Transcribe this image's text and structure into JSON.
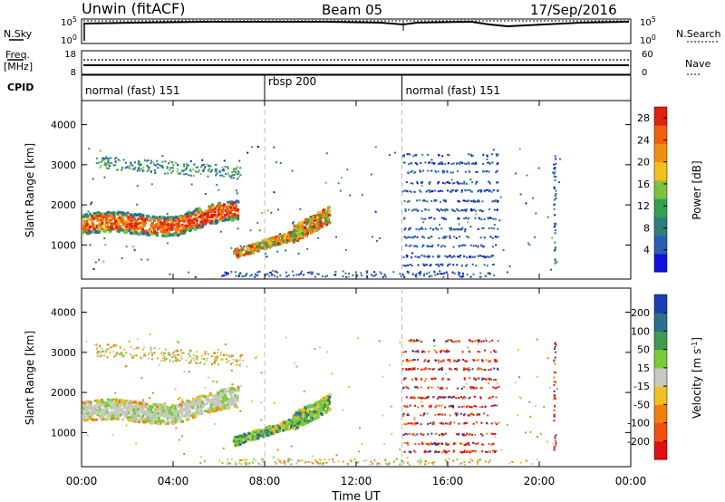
{
  "header": {
    "station": "Unwin (fitACF)",
    "beam": "Beam 05",
    "date": "17/Sep/2016"
  },
  "colors": {
    "background": "#ffffff",
    "axis": "#000000",
    "mode_divider": "#bbbbbb",
    "ground_scatter": "#c8c8c0"
  },
  "noise_panel": {
    "left_label": "N.Sky",
    "left_ticks": [
      "10^5",
      "10^0"
    ],
    "right_label": "N.Search",
    "right_ticks": [
      "10^5",
      "10^0"
    ]
  },
  "freq_panel": {
    "left_label_1": "Freq.",
    "left_label_2": "[MHz]",
    "left_ticks": [
      "18",
      "8"
    ],
    "right_label": "Nave",
    "right_ticks": [
      "60",
      "0"
    ]
  },
  "cpid_panel": {
    "label": "CPID",
    "segments": [
      {
        "label": "normal (fast) 151",
        "start_hour": 0,
        "end_hour": 8
      },
      {
        "label": "rbsp 200",
        "start_hour": 8,
        "end_hour": 14
      },
      {
        "label": "normal (fast) 151",
        "start_hour": 14,
        "end_hour": 24
      }
    ]
  },
  "x_axis": {
    "label": "Time UT",
    "ticks": [
      "00:00",
      "04:00",
      "08:00",
      "12:00",
      "16:00",
      "20:00",
      "00:00"
    ]
  },
  "chart_data": [
    {
      "type": "heatmap",
      "title": "",
      "xlabel": "Time UT",
      "ylabel": "Slant Range [km]",
      "xlim_hours": [
        0,
        24
      ],
      "ylim_km": [
        150,
        4600
      ],
      "y_ticks": [
        "1000",
        "2000",
        "3000",
        "4000"
      ],
      "colorbar": {
        "label": "Power [dB]",
        "ticks": [
          "4",
          "8",
          "12",
          "16",
          "20",
          "24",
          "28"
        ],
        "range": [
          0,
          30
        ],
        "colors": [
          "#1010e0",
          "#2a5fb0",
          "#2f7f7a",
          "#33a050",
          "#80c040",
          "#f0c020",
          "#f09010",
          "#f06010",
          "#e02010"
        ]
      },
      "regions": [
        {
          "name": "E-region band",
          "t_hours": [
            0,
            6.8
          ],
          "range_km": [
            1200,
            2000
          ],
          "level": "strong (20-30 dB)"
        },
        {
          "name": "upper scatter",
          "t_hours": [
            0.5,
            7
          ],
          "range_km": [
            2600,
            3400
          ],
          "level": "weak (8-16 dB)"
        },
        {
          "name": "rbsp echoes",
          "t_hours": [
            6.5,
            10.8
          ],
          "range_km": [
            700,
            2100
          ],
          "level": "mixed (8-30 dB)"
        },
        {
          "name": "late scatter",
          "t_hours": [
            14,
            20.6
          ],
          "range_km": [
            300,
            3500
          ],
          "level": "weak (4-8 dB)"
        }
      ]
    },
    {
      "type": "heatmap",
      "title": "",
      "xlabel": "Time UT",
      "ylabel": "Slant Range [km]",
      "xlim_hours": [
        0,
        24
      ],
      "ylim_km": [
        150,
        4600
      ],
      "y_ticks": [
        "1000",
        "2000",
        "3000",
        "4000"
      ],
      "colorbar": {
        "label": "Velocity [m s^-1]",
        "ticks": [
          "200",
          "100",
          "50",
          "15",
          "-15",
          "-50",
          "-100",
          "-200"
        ],
        "colors": [
          "#1a40b0",
          "#2e6f8c",
          "#3d9a50",
          "#7acb3c",
          "#c8c8c0",
          "#f0c020",
          "#f08010",
          "#f05010",
          "#e01010"
        ]
      },
      "regions": [
        {
          "name": "ground scatter band",
          "t_hours": [
            0,
            6.8
          ],
          "range_km": [
            1300,
            2100
          ],
          "velocity": "~0 (grey)"
        },
        {
          "name": "rbsp echoes",
          "t_hours": [
            6.5,
            10.8
          ],
          "range_km": [
            700,
            2100
          ],
          "velocity": "15 to 200 (green)"
        },
        {
          "name": "late scatter",
          "t_hours": [
            14,
            20.6
          ],
          "range_km": [
            300,
            3500
          ],
          "velocity": "-100 to -200 (red)"
        }
      ]
    }
  ]
}
